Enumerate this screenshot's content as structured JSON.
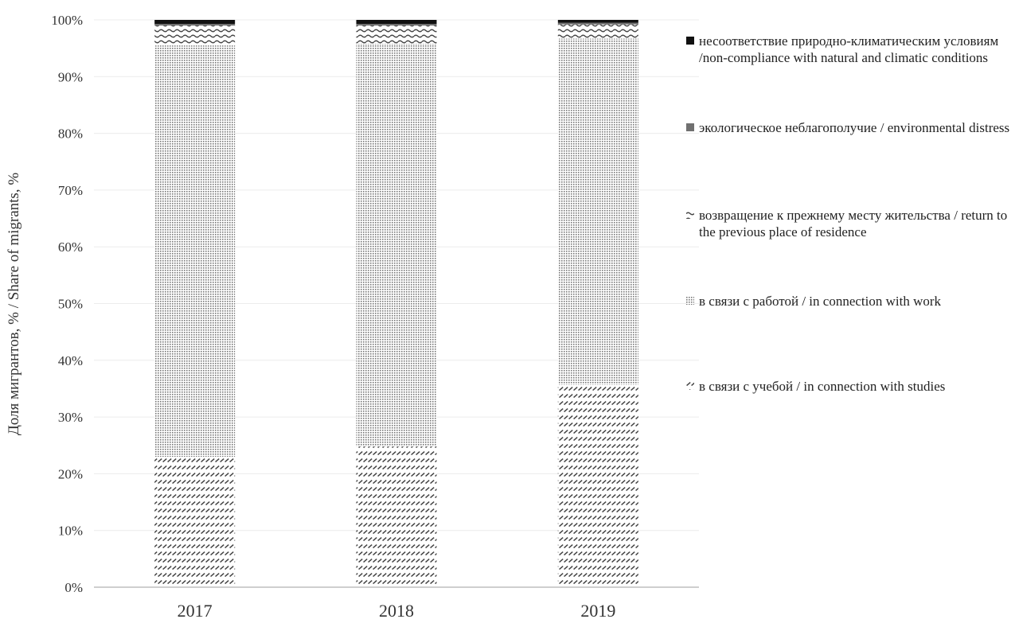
{
  "chart_data": {
    "type": "bar",
    "stacked": true,
    "title": "",
    "ylabel": "Доля мигрантов, % / Share of migrants, %",
    "xlabel": "",
    "categories": [
      "2017",
      "2018",
      "2019"
    ],
    "ylim": [
      0,
      100
    ],
    "yticks": [
      "0%",
      "10%",
      "20%",
      "30%",
      "40%",
      "50%",
      "60%",
      "70%",
      "80%",
      "90%",
      "100%"
    ],
    "grid": true,
    "legend_position": "right",
    "series": [
      {
        "name": "в связи с учебой / in connection with studies",
        "values": [
          23.0,
          24.8,
          35.7
        ],
        "pattern": "diagonal-dashes"
      },
      {
        "name": "в связи с работой / in connection with work",
        "values": [
          72.5,
          71.0,
          61.0
        ],
        "pattern": "dots"
      },
      {
        "name": "возвращение к прежнему месту жительства / return to the previous place of residence",
        "values": [
          3.5,
          3.2,
          2.5
        ],
        "pattern": "waves"
      },
      {
        "name": "экологическое неблагополучие / environmental distress",
        "values": [
          0.3,
          0.3,
          0.3
        ],
        "pattern": "solid-gray"
      },
      {
        "name": "несоответствие природно-климатическим условиям /non-compliance with natural and climatic conditions",
        "values": [
          0.7,
          0.7,
          0.5
        ],
        "pattern": "solid-black"
      }
    ],
    "legend_order": [
      4,
      3,
      2,
      1,
      0
    ]
  },
  "colors": {
    "axis": "#bfbfbf",
    "grid": "#ececec",
    "text": "#333333",
    "solid_black": "#111111",
    "solid_gray": "#707070",
    "pattern_ink": "#444444"
  }
}
